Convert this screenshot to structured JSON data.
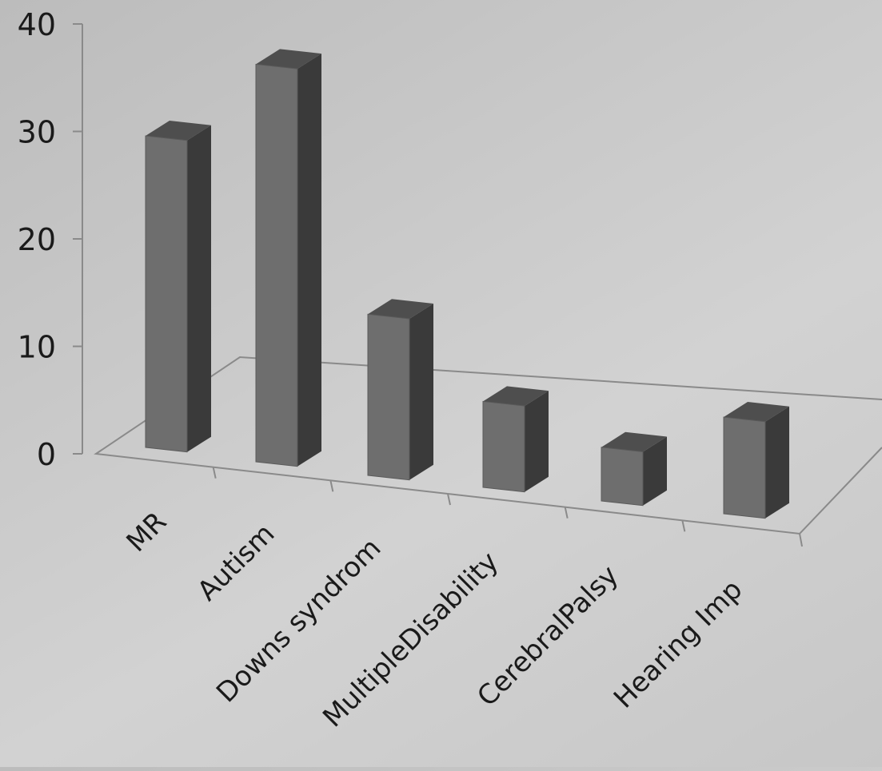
{
  "chart_data": {
    "type": "bar",
    "style": "3d-column",
    "title": "",
    "xlabel": "",
    "ylabel": "",
    "categories": [
      "MR",
      "Autism",
      "Downs syndrom",
      "MultipleDisability",
      "CerebralPalsy",
      "Hearing Imp"
    ],
    "values": [
      29,
      37,
      15,
      8,
      5,
      9
    ],
    "y_ticks": [
      "0",
      "10",
      "20",
      "30",
      "40"
    ],
    "ylim": [
      0,
      40
    ],
    "grid": false,
    "legend": "none",
    "colors": {
      "bar_front": "#6e6e6e",
      "bar_side": "#3a3a3a",
      "bar_top": "#4e4e4e",
      "axis": "#8a8a8a",
      "text": "#1a1a1a"
    }
  }
}
